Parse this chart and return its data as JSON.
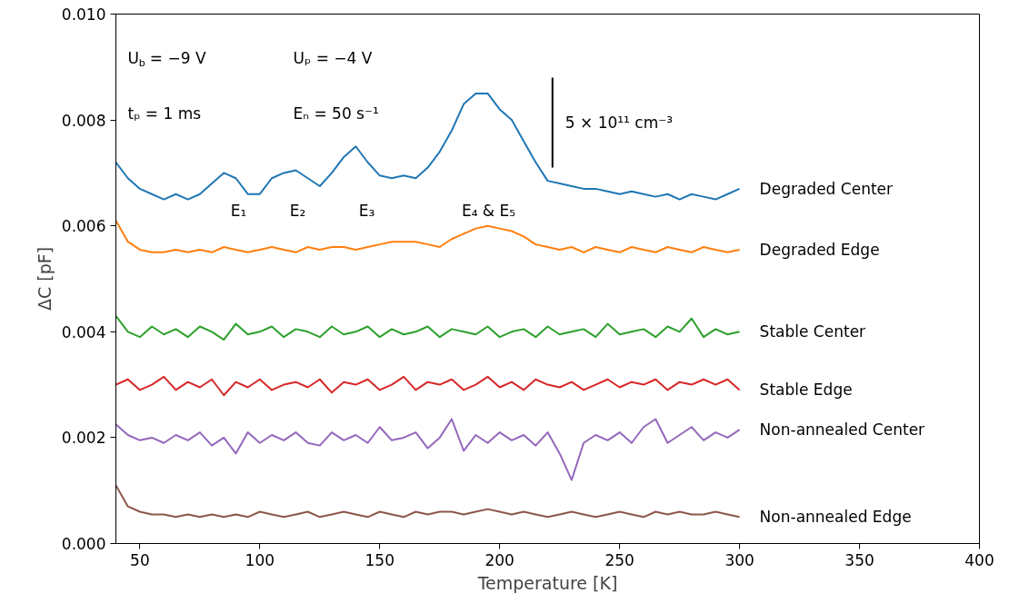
{
  "chart_data": {
    "type": "line",
    "xlabel": "Temperature [K]",
    "ylabel": "ΔC [pF]",
    "xlim": [
      40,
      400
    ],
    "ylim": [
      0,
      0.01
    ],
    "xticks": [
      50,
      100,
      150,
      200,
      250,
      300,
      350,
      400
    ],
    "yticks": [
      {
        "value": 0,
        "label": "0.000"
      },
      {
        "value": 0.002,
        "label": "0.002"
      },
      {
        "value": 0.004,
        "label": "0.004"
      },
      {
        "value": 0.006,
        "label": "0.006"
      },
      {
        "value": 0.008,
        "label": "0.008"
      },
      {
        "value": 0.01,
        "label": "0.010"
      }
    ],
    "grid": false,
    "x": [
      40,
      45,
      50,
      55,
      60,
      65,
      70,
      75,
      80,
      85,
      90,
      95,
      100,
      105,
      110,
      115,
      120,
      125,
      130,
      135,
      140,
      145,
      150,
      155,
      160,
      165,
      170,
      175,
      180,
      185,
      190,
      195,
      200,
      205,
      210,
      215,
      220,
      225,
      230,
      235,
      240,
      245,
      250,
      255,
      260,
      265,
      270,
      275,
      280,
      285,
      290,
      295,
      300
    ],
    "series": [
      {
        "name": "Degraded Center",
        "color": "#1f77b4",
        "values": [
          0.0072,
          0.0069,
          0.0067,
          0.0066,
          0.0065,
          0.0066,
          0.0065,
          0.0066,
          0.0068,
          0.007,
          0.0069,
          0.0066,
          0.0066,
          0.0069,
          0.007,
          0.00705,
          0.0069,
          0.00675,
          0.007,
          0.0073,
          0.0075,
          0.0072,
          0.00695,
          0.0069,
          0.00695,
          0.0069,
          0.0071,
          0.0074,
          0.0078,
          0.0083,
          0.0085,
          0.0085,
          0.0082,
          0.008,
          0.0076,
          0.0072,
          0.00685,
          0.0068,
          0.00675,
          0.0067,
          0.0067,
          0.00665,
          0.0066,
          0.00665,
          0.0066,
          0.00655,
          0.0066,
          0.0065,
          0.0066,
          0.00655,
          0.0065,
          0.0066,
          0.0067
        ]
      },
      {
        "name": "Degraded Edge",
        "color": "#ff7f0e",
        "values": [
          0.0061,
          0.0057,
          0.00555,
          0.0055,
          0.0055,
          0.00555,
          0.0055,
          0.00555,
          0.0055,
          0.0056,
          0.00555,
          0.0055,
          0.00555,
          0.0056,
          0.00555,
          0.0055,
          0.0056,
          0.00555,
          0.0056,
          0.0056,
          0.00555,
          0.0056,
          0.00565,
          0.0057,
          0.0057,
          0.0057,
          0.00565,
          0.0056,
          0.00575,
          0.00585,
          0.00595,
          0.006,
          0.00595,
          0.0059,
          0.0058,
          0.00565,
          0.0056,
          0.00555,
          0.0056,
          0.0055,
          0.0056,
          0.00555,
          0.0055,
          0.0056,
          0.00555,
          0.0055,
          0.0056,
          0.00555,
          0.0055,
          0.0056,
          0.00555,
          0.0055,
          0.00555
        ]
      },
      {
        "name": "Stable Center",
        "color": "#2ca02c",
        "values": [
          0.0043,
          0.004,
          0.0039,
          0.0041,
          0.00395,
          0.00405,
          0.0039,
          0.0041,
          0.004,
          0.00385,
          0.00415,
          0.00395,
          0.004,
          0.0041,
          0.0039,
          0.00405,
          0.004,
          0.0039,
          0.0041,
          0.00395,
          0.004,
          0.0041,
          0.0039,
          0.00405,
          0.00395,
          0.004,
          0.0041,
          0.0039,
          0.00405,
          0.004,
          0.00395,
          0.0041,
          0.0039,
          0.004,
          0.00405,
          0.0039,
          0.0041,
          0.00395,
          0.004,
          0.00405,
          0.0039,
          0.00415,
          0.00395,
          0.004,
          0.00405,
          0.0039,
          0.0041,
          0.004,
          0.00425,
          0.0039,
          0.00405,
          0.00395,
          0.004
        ]
      },
      {
        "name": "Stable Edge",
        "color": "#d62728",
        "values": [
          0.003,
          0.0031,
          0.0029,
          0.003,
          0.00315,
          0.0029,
          0.00305,
          0.00295,
          0.0031,
          0.0028,
          0.00305,
          0.00295,
          0.0031,
          0.0029,
          0.003,
          0.00305,
          0.00295,
          0.0031,
          0.00285,
          0.00305,
          0.003,
          0.0031,
          0.0029,
          0.003,
          0.00315,
          0.0029,
          0.00305,
          0.003,
          0.0031,
          0.0029,
          0.003,
          0.00315,
          0.00295,
          0.00305,
          0.0029,
          0.0031,
          0.003,
          0.00295,
          0.00305,
          0.0029,
          0.003,
          0.0031,
          0.00295,
          0.00305,
          0.003,
          0.0031,
          0.0029,
          0.00305,
          0.003,
          0.0031,
          0.003,
          0.0031,
          0.0029
        ]
      },
      {
        "name": "Non-annealed Center",
        "color": "#9467bd",
        "values": [
          0.00225,
          0.00205,
          0.00195,
          0.002,
          0.0019,
          0.00205,
          0.00195,
          0.0021,
          0.00185,
          0.002,
          0.0017,
          0.0021,
          0.0019,
          0.00205,
          0.00195,
          0.0021,
          0.0019,
          0.00185,
          0.0021,
          0.00195,
          0.00205,
          0.0019,
          0.0022,
          0.00195,
          0.002,
          0.0021,
          0.0018,
          0.002,
          0.00235,
          0.00175,
          0.00205,
          0.0019,
          0.0021,
          0.00195,
          0.00205,
          0.00185,
          0.0021,
          0.0017,
          0.0012,
          0.0019,
          0.00205,
          0.00195,
          0.0021,
          0.0019,
          0.0022,
          0.00235,
          0.0019,
          0.00205,
          0.0022,
          0.00195,
          0.0021,
          0.002,
          0.00215
        ]
      },
      {
        "name": "Non-annealed Edge",
        "color": "#8c564b",
        "values": [
          0.0011,
          0.0007,
          0.0006,
          0.00055,
          0.00055,
          0.0005,
          0.00055,
          0.0005,
          0.00055,
          0.0005,
          0.00055,
          0.0005,
          0.0006,
          0.00055,
          0.0005,
          0.00055,
          0.0006,
          0.0005,
          0.00055,
          0.0006,
          0.00055,
          0.0005,
          0.0006,
          0.00055,
          0.0005,
          0.0006,
          0.00055,
          0.0006,
          0.0006,
          0.00055,
          0.0006,
          0.00065,
          0.0006,
          0.00055,
          0.0006,
          0.00055,
          0.0005,
          0.00055,
          0.0006,
          0.00055,
          0.0005,
          0.00055,
          0.0006,
          0.00055,
          0.0005,
          0.0006,
          0.00055,
          0.0006,
          0.00055,
          0.00055,
          0.0006,
          0.00055,
          0.0005
        ]
      },
      {
        "name": "5 × 10¹¹ cm⁻³",
        "type": "line",
        "color": "#000000",
        "x": [
          222,
          222
        ],
        "values": [
          0.0088,
          0.0071
        ]
      }
    ],
    "annotations": [
      "U$_{b}$ = −9 V",
      "Uₚ = −4 V",
      "tₚ = 1 ms",
      "Eₙ = 50 s⁻¹",
      "E₁",
      "E₂",
      "E₃",
      "E₄ & E₅"
    ]
  }
}
